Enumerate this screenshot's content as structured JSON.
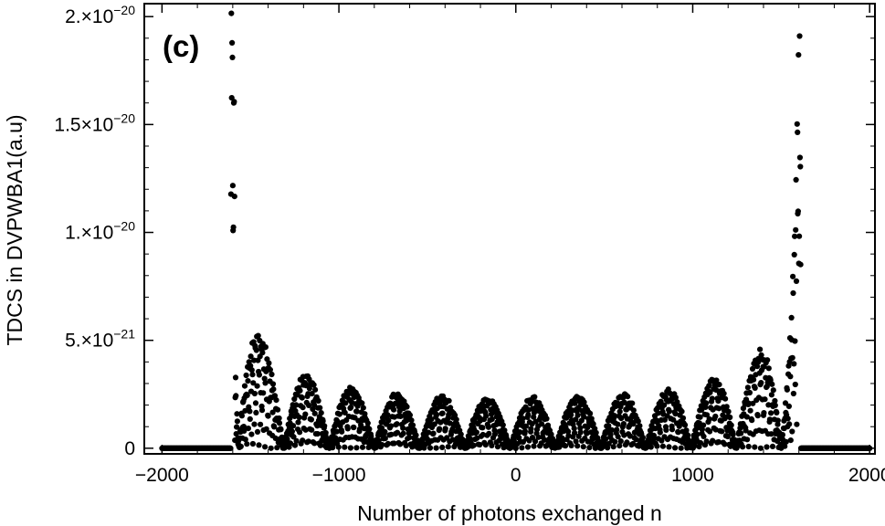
{
  "chart_data": {
    "type": "scatter",
    "panel_label": "(c)",
    "xlabel": "Number of photons exchanged n",
    "ylabel": "TDCS in DVPWBA1(a.u)",
    "xlim": [
      -2100,
      2030
    ],
    "ylim": [
      -2.6e-22,
      2.06e-20
    ],
    "x_ticks": [
      {
        "value": -2000,
        "label": "−2000"
      },
      {
        "value": -1000,
        "label": "−1000"
      },
      {
        "value": 0,
        "label": "0"
      },
      {
        "value": 1000,
        "label": "1000"
      },
      {
        "value": 2000,
        "label": "2000"
      }
    ],
    "y_ticks": [
      {
        "value": 0,
        "mantissa": "0",
        "exponent": ""
      },
      {
        "value": 5e-21,
        "mantissa": "5.×10",
        "exponent": "−21"
      },
      {
        "value": 1e-20,
        "mantissa": "1.×10",
        "exponent": "−20"
      },
      {
        "value": 1.5e-20,
        "mantissa": "1.5×10",
        "exponent": "−20"
      },
      {
        "value": 2e-20,
        "mantissa": "2.×10",
        "exponent": "−20"
      }
    ],
    "cutoff_n": 1610,
    "n_range": [
      -2000,
      2000
    ],
    "series": [
      {
        "envelope": [
          {
            "n": -1600,
            "y": 2.02e-20
          },
          {
            "n": -1580,
            "y": 1.4e-20
          },
          {
            "n": -1560,
            "y": 1e-20
          },
          {
            "n": -1540,
            "y": 8e-21
          },
          {
            "n": -1500,
            "y": 6.4e-21
          },
          {
            "n": -1450,
            "y": 5.4e-21
          },
          {
            "n": -1400,
            "y": 4.8e-21
          },
          {
            "n": -1300,
            "y": 4e-21
          },
          {
            "n": -1200,
            "y": 3.5e-21
          },
          {
            "n": -1000,
            "y": 3e-21
          },
          {
            "n": -800,
            "y": 2.7e-21
          },
          {
            "n": -500,
            "y": 2.5e-21
          },
          {
            "n": 0,
            "y": 2.4e-21
          },
          {
            "n": 500,
            "y": 2.5e-21
          },
          {
            "n": 800,
            "y": 2.7e-21
          },
          {
            "n": 1000,
            "y": 3e-21
          },
          {
            "n": 1200,
            "y": 3.5e-21
          },
          {
            "n": 1300,
            "y": 4e-21
          },
          {
            "n": 1400,
            "y": 4.8e-21
          },
          {
            "n": 1450,
            "y": 5.4e-21
          },
          {
            "n": 1500,
            "y": 6.4e-21
          },
          {
            "n": 1540,
            "y": 8e-21
          },
          {
            "n": 1560,
            "y": 1e-20
          },
          {
            "n": 1580,
            "y": 1.4e-20
          },
          {
            "n": 1600,
            "y": 1.95e-20
          }
        ]
      }
    ],
    "grid": false,
    "frame": true
  }
}
